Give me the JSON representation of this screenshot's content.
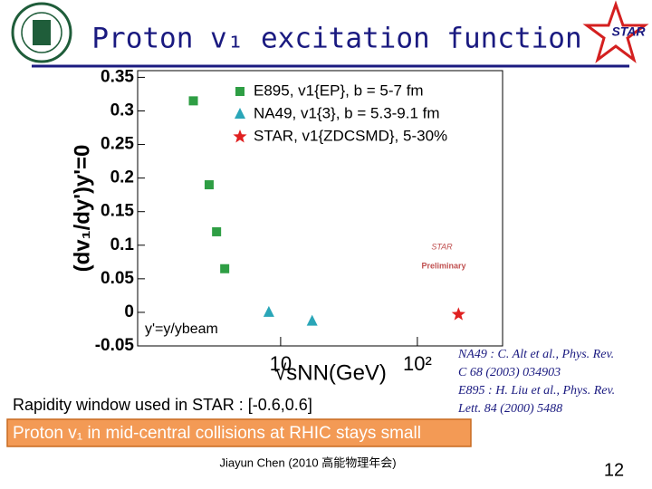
{
  "slide": {
    "title": "Proton v₁ excitation function",
    "logo": "STAR",
    "references": [
      "NA49 : C. Alt et al., Phys. Rev.",
      "C 68 (2003) 034903",
      "E895 : H. Liu et al., Phys. Rev.",
      "Lett. 84 (2000) 5488"
    ],
    "rapidity_note": "Rapidity window used in STAR : [-0.6,0.6]",
    "highlight": "Proton v₁ in mid-central collisions at RHIC stays small",
    "footer": "Jiayun Chen (2010 高能物理年会)",
    "page": "12"
  },
  "chart_data": {
    "type": "scatter",
    "x_label": "√sNN(GeV)",
    "y_label": "(dv₁/dy')y'=0",
    "annotation": "y'=y/ybeam",
    "stamp": [
      "STAR",
      "Preliminary"
    ],
    "xlog": true,
    "xlim": [
      0.9,
      420
    ],
    "xticks": [
      10,
      {
        "value": 100,
        "label": "10²"
      }
    ],
    "ylim": [
      -0.05,
      0.36
    ],
    "yticks": [
      -0.05,
      0,
      0.05,
      0.1,
      0.15,
      0.2,
      0.25,
      0.3,
      0.35
    ],
    "series": [
      {
        "name": "E895, v1{EP}, b = 5-7 fm",
        "color": "#2e9e44",
        "marker": "square",
        "x": [
          2.3,
          3.0,
          3.4,
          3.9
        ],
        "values": [
          0.315,
          0.19,
          0.12,
          0.065
        ]
      },
      {
        "name": "NA49, v1{3}, b = 5.3-9.1 fm",
        "color": "#2aa6b8",
        "marker": "triangle",
        "x": [
          8.2,
          17
        ],
        "values": [
          0.0,
          -0.013
        ]
      },
      {
        "name": "STAR, v1{ZDCSMD}, 5-30%",
        "color": "#e02020",
        "marker": "star",
        "x": [
          200
        ],
        "values": [
          -0.003
        ]
      }
    ]
  }
}
